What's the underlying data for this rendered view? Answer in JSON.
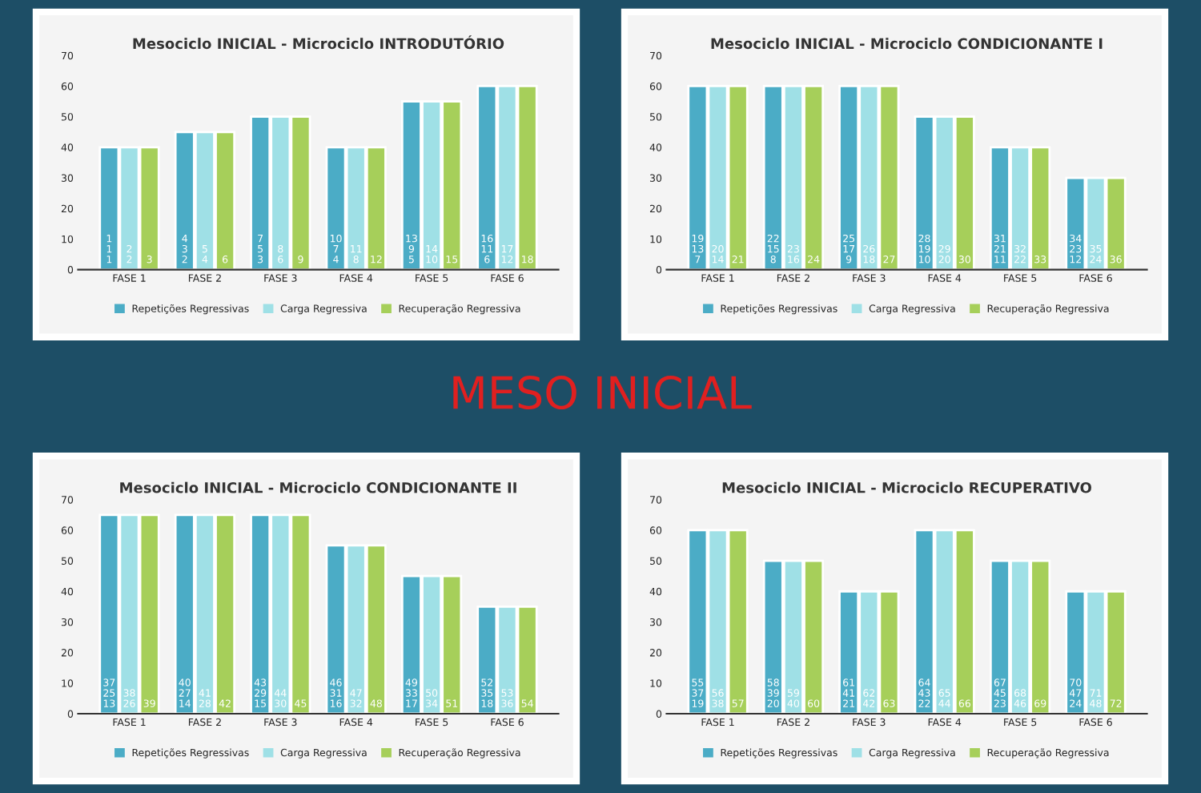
{
  "chart_data": [
    {
      "type": "bar",
      "title": "Mesociclo INICIAL - Microciclo INTRODUTÓRIO",
      "legend": "bottom",
      "ylim": [
        0,
        70
      ],
      "yticks": [
        0,
        10,
        20,
        30,
        40,
        50,
        60,
        70
      ],
      "annotations": [
        "MESO INICIAL",
        "1\n1\n1",
        "2\n2",
        "3",
        "4\n3\n2",
        "5\n4",
        "6",
        "7\n5\n3",
        "8\n6",
        "9",
        "10\n7\n4",
        "11\n8",
        "12",
        "13\n9\n5",
        "14\n10",
        "15",
        "16\n11\n6",
        "17\n12",
        "18"
      ],
      "categories": [
        "FASE 1",
        "FASE 2",
        "FASE 3",
        "FASE 4",
        "FASE 5",
        "FASE 6"
      ],
      "series": [
        {
          "name": "Repetições Regressivas",
          "color": "#4bacc6",
          "values": [
            40,
            45,
            50,
            40,
            55,
            60
          ]
        },
        {
          "name": "Carga Regressiva",
          "color": "#9fe0e6",
          "values": [
            40,
            45,
            50,
            40,
            55,
            60
          ]
        },
        {
          "name": "Recuperação Regressiva",
          "color": "#a6cf5a",
          "values": [
            40,
            45,
            50,
            40,
            55,
            60
          ]
        }
      ]
    },
    {
      "type": "bar",
      "title": "Mesociclo INICIAL - Microciclo CONDICIONANTE I",
      "legend": "bottom",
      "ylim": [
        0,
        70
      ],
      "yticks": [
        0,
        10,
        20,
        30,
        40,
        50,
        60,
        70
      ],
      "annotations": [
        "19\n13\n7",
        "20\n14",
        "21",
        "22\n15\n8",
        "23\n16",
        "24",
        "25\n17\n9",
        "26\n18",
        "27",
        "28\n19\n10",
        "29\n20",
        "30",
        "31\n21\n11",
        "32\n22",
        "33",
        "34\n23\n12",
        "35\n24",
        "36"
      ],
      "categories": [
        "FASE 1",
        "FASE 2",
        "FASE 3",
        "FASE 4",
        "FASE 5",
        "FASE 6"
      ],
      "series": [
        {
          "name": "Repetições Regressivas",
          "color": "#4bacc6",
          "values": [
            60,
            60,
            60,
            50,
            40,
            30
          ]
        },
        {
          "name": "Carga Regressiva",
          "color": "#9fe0e6",
          "values": [
            60,
            60,
            60,
            50,
            40,
            30
          ]
        },
        {
          "name": "Recuperação Regressiva",
          "color": "#a6cf5a",
          "values": [
            60,
            60,
            60,
            50,
            40,
            30
          ]
        }
      ]
    },
    {
      "type": "bar",
      "title": "Mesociclo INICIAL - Microciclo CONDICIONANTE II",
      "legend": "bottom",
      "ylim": [
        0,
        70
      ],
      "yticks": [
        0,
        10,
        20,
        30,
        40,
        50,
        60,
        70
      ],
      "annotations": [
        "37\n25\n13",
        "38\n26",
        "39",
        "40\n27\n14",
        "41\n28",
        "42",
        "43\n29\n15",
        "44\n30",
        "45",
        "46\n31\n16",
        "47\n32",
        "48",
        "49\n33\n17",
        "50\n34",
        "51",
        "52\n35\n18",
        "53\n36",
        "54"
      ],
      "categories": [
        "FASE 1",
        "FASE 2",
        "FASE 3",
        "FASE 4",
        "FASE 5",
        "FASE 6"
      ],
      "series": [
        {
          "name": "Repetições Regressivas",
          "color": "#4bacc6",
          "values": [
            65,
            65,
            65,
            55,
            45,
            35
          ]
        },
        {
          "name": "Carga Regressiva",
          "color": "#9fe0e6",
          "values": [
            65,
            65,
            65,
            55,
            45,
            35
          ]
        },
        {
          "name": "Recuperação Regressiva",
          "color": "#a6cf5a",
          "values": [
            65,
            65,
            65,
            55,
            45,
            35
          ]
        }
      ]
    },
    {
      "type": "bar",
      "title": "Mesociclo INICIAL - Microciclo RECUPERATIVO",
      "legend": "bottom",
      "ylim": [
        0,
        70
      ],
      "yticks": [
        0,
        10,
        20,
        30,
        40,
        50,
        60,
        70
      ],
      "annotations": [
        "55\n37\n19",
        "56\n38",
        "57",
        "58\n39\n20",
        "59\n40",
        "60",
        "61\n41\n21",
        "62\n42",
        "63",
        "64\n43\n22",
        "65\n44",
        "66",
        "67\n45\n23",
        "68\n46",
        "69",
        "70\n47\n24",
        "71\n48",
        "72"
      ],
      "categories": [
        "FASE 1",
        "FASE 2",
        "FASE 3",
        "FASE 4",
        "FASE 5",
        "FASE 6"
      ],
      "series": [
        {
          "name": "Repetições Regressivas",
          "color": "#4bacc6",
          "values": [
            60,
            50,
            40,
            60,
            50,
            40
          ]
        },
        {
          "name": "Carga Regressiva",
          "color": "#9fe0e6",
          "values": [
            60,
            50,
            40,
            60,
            50,
            40
          ]
        },
        {
          "name": "Recuperação Regressiva",
          "color": "#a6cf5a",
          "values": [
            60,
            50,
            40,
            60,
            50,
            40
          ]
        }
      ]
    }
  ]
}
